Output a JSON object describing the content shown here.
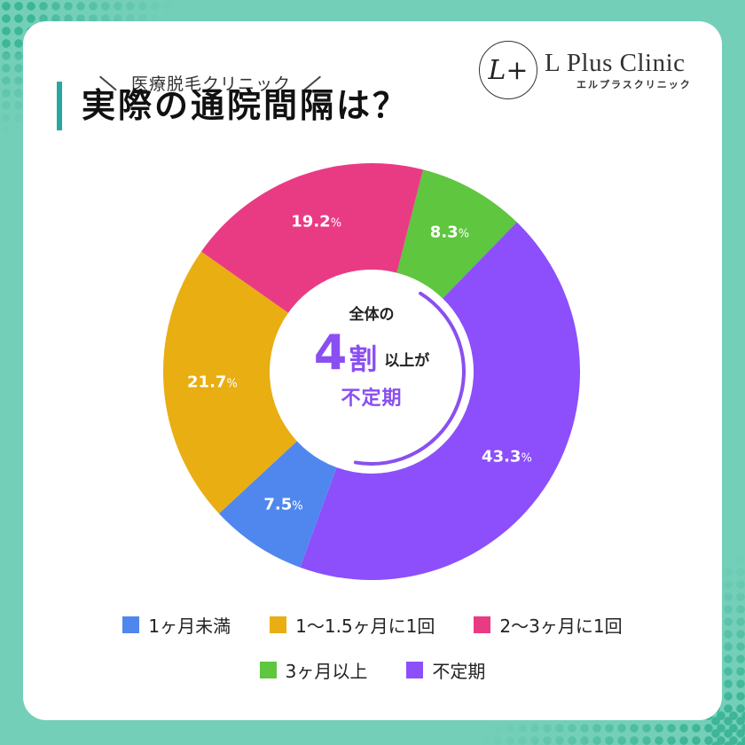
{
  "header": {
    "subtitle": "医療脱毛クリニック",
    "title": "実際の通院間隔は？"
  },
  "logo": {
    "mark": "L+",
    "name": "L Plus Clinic",
    "kana": "エルプラスクリニック"
  },
  "center": {
    "line1": "全体の",
    "big_number": "4",
    "big_kanji": "割",
    "line2_rest": "以上が",
    "line3": "不定期",
    "accent_color": "#8a4ff0"
  },
  "chart_data": {
    "type": "pie",
    "subtype": "donut",
    "title": "実際の通院間隔は？",
    "start_angle_deg": 14.3,
    "categories": [
      "3ヶ月以上",
      "不定期",
      "1ヶ月未満",
      "1〜1.5ヶ月に1回",
      "2〜3ヶ月に1回"
    ],
    "values": [
      8.3,
      43.3,
      7.5,
      21.7,
      19.2
    ],
    "labels": [
      "8.3",
      "43.3",
      "7.5",
      "21.7",
      "19.2"
    ],
    "unit": "%",
    "colors": [
      "#5ec63f",
      "#8c4ffb",
      "#5087ef",
      "#e8ae12",
      "#e93b83"
    ],
    "legend": [
      {
        "label": "1ヶ月未満",
        "color": "#5087ef"
      },
      {
        "label": "1〜1.5ヶ月に1回",
        "color": "#e8ae12"
      },
      {
        "label": "2〜3ヶ月に1回",
        "color": "#e93b83"
      },
      {
        "label": "3ヶ月以上",
        "color": "#5ec63f"
      },
      {
        "label": "不定期",
        "color": "#8c4ffb"
      }
    ],
    "legend_position": "bottom"
  }
}
